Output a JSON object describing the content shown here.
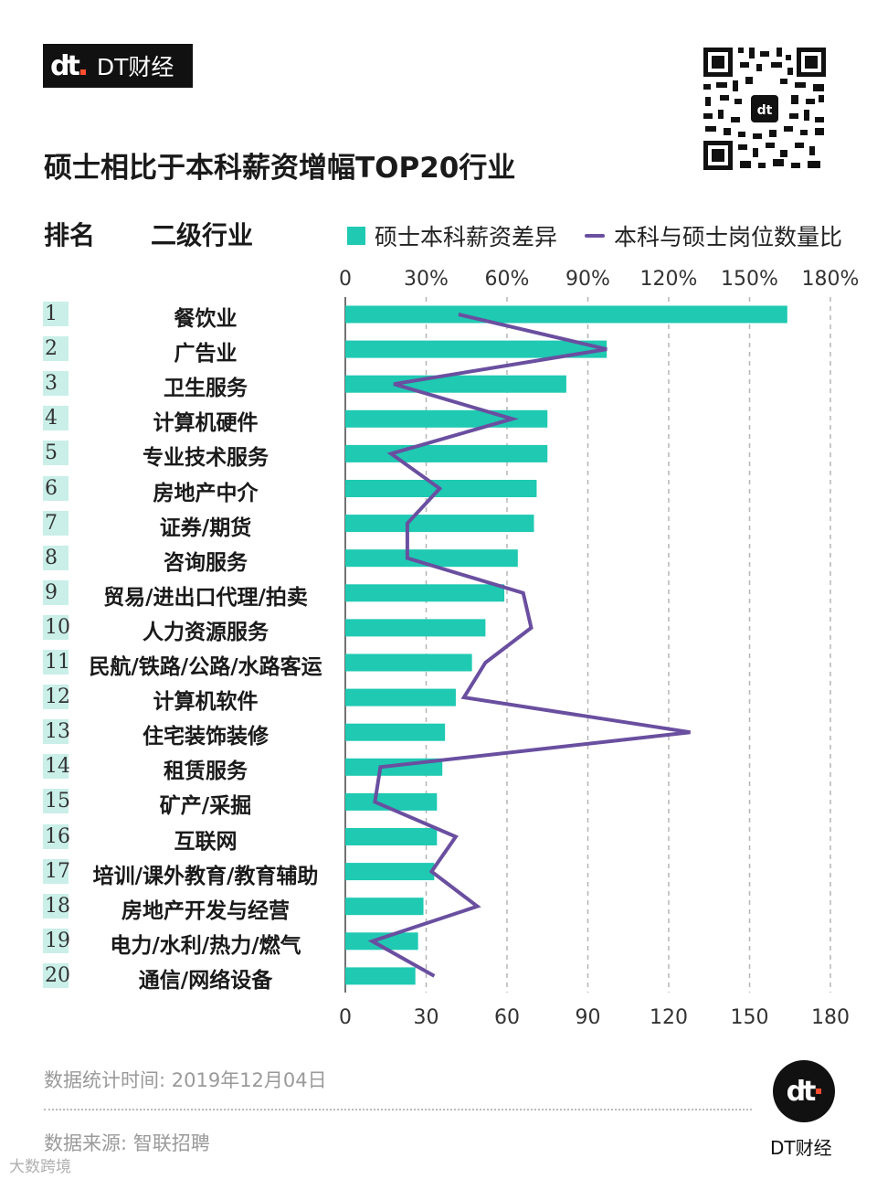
{
  "brand": {
    "logo_text": "dt",
    "name": "DT财经"
  },
  "title": "硕士相比于本科薪资增幅TOP20行业",
  "headers": {
    "rank": "排名",
    "industry": "二级行业"
  },
  "colors": {
    "bar": "#1fc9b2",
    "line": "#6a4fa0",
    "rank_bg": "#c9efe8",
    "grid": "#b5b5b5"
  },
  "chart_data": {
    "type": "bar",
    "orientation": "horizontal",
    "title": "硕士相比于本科薪资增幅TOP20行业",
    "categories": [
      "餐饮业",
      "广告业",
      "卫生服务",
      "计算机硬件",
      "专业技术服务",
      "房地产中介",
      "证券/期货",
      "咨询服务",
      "贸易/进出口代理/拍卖",
      "人力资源服务",
      "民航/铁路/公路/水路客运",
      "计算机软件",
      "住宅装饰装修",
      "租赁服务",
      "矿产/采掘",
      "互联网",
      "培训/课外教育/教育辅助",
      "房地产开发与经营",
      "电力/水利/热力/燃气",
      "通信/网络设备"
    ],
    "ranks": [
      "1",
      "2",
      "3",
      "4",
      "5",
      "6",
      "7",
      "8",
      "9",
      "10",
      "11",
      "12",
      "13",
      "14",
      "15",
      "16",
      "17",
      "18",
      "19",
      "20"
    ],
    "series": [
      {
        "name": "硕士本科薪资差异",
        "type": "bar",
        "axis": "top",
        "unit": "%",
        "values": [
          164,
          97,
          82,
          75,
          75,
          71,
          70,
          64,
          59,
          52,
          47,
          41,
          37,
          36,
          34,
          34,
          33,
          29,
          27,
          26
        ]
      },
      {
        "name": "本科与硕士岗位数量比",
        "type": "line",
        "axis": "bottom",
        "values": [
          42,
          97,
          18,
          62,
          17,
          35,
          23,
          23,
          66,
          69,
          52,
          44,
          128,
          13,
          11,
          41,
          32,
          49,
          10,
          33
        ]
      }
    ],
    "top_axis": {
      "range": [
        0,
        180
      ],
      "ticks": [
        "0",
        "30%",
        "60%",
        "90%",
        "120%",
        "150%",
        "180%"
      ]
    },
    "bottom_axis": {
      "range": [
        0,
        180
      ],
      "ticks": [
        "0",
        "30",
        "60",
        "90",
        "120",
        "150",
        "180"
      ]
    },
    "legend": [
      "硕士本科薪资差异",
      "本科与硕士岗位数量比"
    ],
    "grid": true
  },
  "footer": {
    "date": "数据统计时间: 2019年12月04日",
    "source": "数据来源: 智联招聘",
    "corner": "大数跨境"
  }
}
